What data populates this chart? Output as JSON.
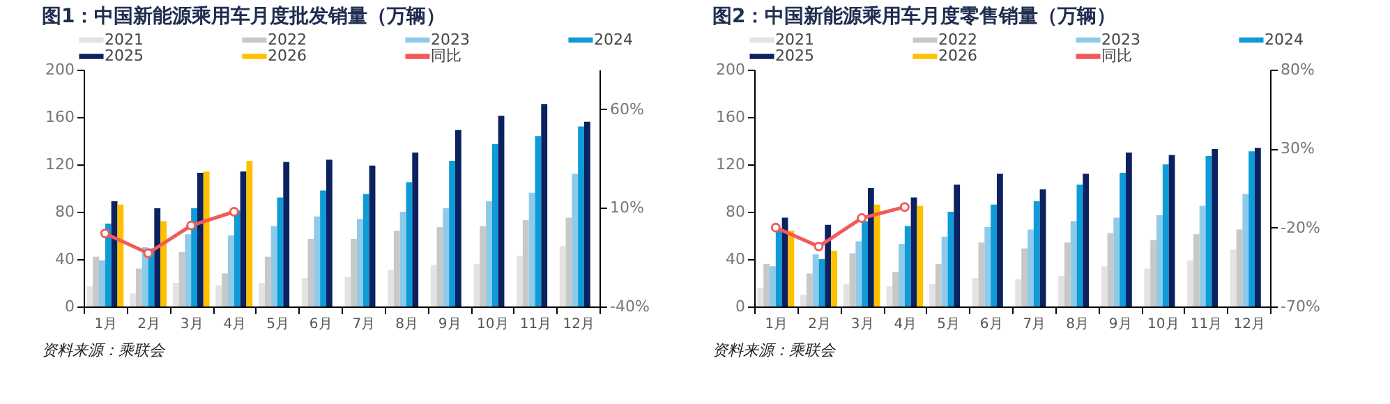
{
  "chart_data": [
    {
      "type": "bar",
      "title": "图1：中国新能源乘用车月度批发销量（万辆）",
      "categories": [
        "1月",
        "2月",
        "3月",
        "4月",
        "5月",
        "6月",
        "7月",
        "8月",
        "9月",
        "10月",
        "11月",
        "12月"
      ],
      "series": [
        {
          "name": "2021",
          "color": "#e3e3e3",
          "values": [
            17,
            11,
            20,
            18,
            20,
            24,
            25,
            31,
            35,
            36,
            43,
            51
          ]
        },
        {
          "name": "2022",
          "color": "#c8c8c8",
          "values": [
            42,
            32,
            46,
            28,
            42,
            57,
            57,
            64,
            67,
            68,
            73,
            75
          ]
        },
        {
          "name": "2023",
          "color": "#8ecbea",
          "values": [
            39,
            50,
            61,
            60,
            68,
            76,
            74,
            80,
            83,
            89,
            96,
            112
          ]
        },
        {
          "name": "2024",
          "color": "#0e9bd8",
          "values": [
            70,
            49,
            83,
            81,
            92,
            98,
            95,
            105,
            123,
            137,
            144,
            152
          ]
        },
        {
          "name": "2025",
          "color": "#0b2160",
          "values": [
            89,
            83,
            113,
            114,
            122,
            124,
            119,
            130,
            149,
            161,
            171,
            156
          ]
        },
        {
          "name": "2026",
          "color": "#ffc000",
          "values": [
            86,
            72,
            114,
            123,
            null,
            null,
            null,
            null,
            null,
            null,
            null,
            null
          ]
        },
        {
          "name": "同比",
          "color": "#f25a5a",
          "type": "line",
          "axis": "y2",
          "marker": "circle",
          "values": [
            -3,
            -13,
            1,
            8,
            null,
            null,
            null,
            null,
            null,
            null,
            null,
            null
          ]
        }
      ],
      "ylim": [
        0,
        200
      ],
      "yticks": [
        0,
        40,
        80,
        120,
        160,
        200
      ],
      "y2lim": [
        -40,
        80
      ],
      "y2ticks": [
        {
          "value": -40,
          "label": "-40%"
        },
        {
          "value": 10,
          "label": "10%"
        },
        {
          "value": 60,
          "label": "60%"
        }
      ],
      "legend": "top",
      "grid": false,
      "annotations": [
        "资料来源：乘联会"
      ]
    },
    {
      "type": "bar",
      "title": "图2：中国新能源乘用车月度零售销量（万辆）",
      "categories": [
        "1月",
        "2月",
        "3月",
        "4月",
        "5月",
        "6月",
        "7月",
        "8月",
        "9月",
        "10月",
        "11月",
        "12月"
      ],
      "series": [
        {
          "name": "2021",
          "color": "#e3e3e3",
          "values": [
            16,
            10,
            19,
            17,
            19,
            24,
            23,
            26,
            34,
            32,
            39,
            48
          ]
        },
        {
          "name": "2022",
          "color": "#c8c8c8",
          "values": [
            36,
            28,
            45,
            29,
            36,
            54,
            49,
            54,
            62,
            56,
            61,
            65
          ]
        },
        {
          "name": "2023",
          "color": "#8ecbea",
          "values": [
            34,
            44,
            55,
            53,
            59,
            67,
            65,
            72,
            75,
            77,
            85,
            95
          ]
        },
        {
          "name": "2024",
          "color": "#0e9bd8",
          "values": [
            64,
            40,
            72,
            68,
            80,
            86,
            89,
            103,
            113,
            120,
            127,
            131
          ]
        },
        {
          "name": "2025",
          "color": "#0b2160",
          "values": [
            75,
            69,
            100,
            92,
            103,
            112,
            99,
            112,
            130,
            128,
            133,
            134
          ]
        },
        {
          "name": "2026",
          "color": "#ffc000",
          "values": [
            64,
            47,
            86,
            85,
            null,
            null,
            null,
            null,
            null,
            null,
            null,
            null
          ]
        },
        {
          "name": "同比",
          "color": "#f25a5a",
          "type": "line",
          "axis": "y2",
          "marker": "circle",
          "values": [
            -20,
            -32,
            -14,
            -7,
            null,
            null,
            null,
            null,
            null,
            null,
            null,
            null
          ]
        }
      ],
      "ylim": [
        0,
        200
      ],
      "yticks": [
        0,
        40,
        80,
        120,
        160,
        200
      ],
      "y2lim": [
        -70,
        80
      ],
      "y2ticks": [
        {
          "value": -70,
          "label": "-70%"
        },
        {
          "value": -20,
          "label": "-20%"
        },
        {
          "value": 30,
          "label": "30%"
        },
        {
          "value": 80,
          "label": "80%"
        }
      ],
      "legend": "top",
      "grid": false,
      "annotations": [
        "资料来源：乘联会"
      ]
    }
  ]
}
